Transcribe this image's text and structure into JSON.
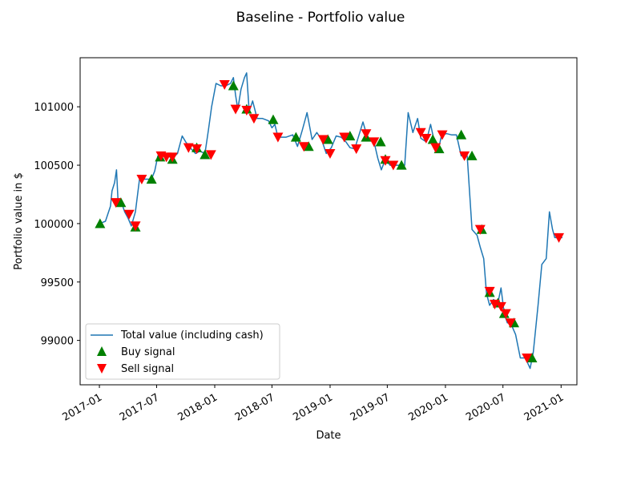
{
  "chart_data": {
    "type": "line",
    "title": "Baseline - Portfolio value",
    "xlabel": "Date",
    "ylabel": "Portfolio value in $",
    "xlim": [
      "2016-11-01",
      "2021-02-20"
    ],
    "ylim": [
      98620,
      101420
    ],
    "x_ticks": [
      "2017-01",
      "2017-07",
      "2018-01",
      "2018-07",
      "2019-01",
      "2019-07",
      "2020-01",
      "2020-07",
      "2021-01"
    ],
    "y_ticks": [
      99000,
      99500,
      100000,
      100500,
      101000
    ],
    "grid": false,
    "legend_position": "lower-left",
    "series": [
      {
        "name": "Total value (including cash)",
        "color": "#1f77b4",
        "points": [
          [
            "2017-01-01",
            100000
          ],
          [
            "2017-01-20",
            100020
          ],
          [
            "2017-02-05",
            100150
          ],
          [
            "2017-02-10",
            100280
          ],
          [
            "2017-02-18",
            100350
          ],
          [
            "2017-02-24",
            100460
          ],
          [
            "2017-03-01",
            100200
          ],
          [
            "2017-03-12",
            100180
          ],
          [
            "2017-03-22",
            100100
          ],
          [
            "2017-04-01",
            100050
          ],
          [
            "2017-04-12",
            99980
          ],
          [
            "2017-04-25",
            100100
          ],
          [
            "2017-05-08",
            100380
          ],
          [
            "2017-05-25",
            100380
          ],
          [
            "2017-06-15",
            100380
          ],
          [
            "2017-06-25",
            100450
          ],
          [
            "2017-07-05",
            100580
          ],
          [
            "2017-07-20",
            100600
          ],
          [
            "2017-08-05",
            100580
          ],
          [
            "2017-08-20",
            100560
          ],
          [
            "2017-09-05",
            100600
          ],
          [
            "2017-09-20",
            100750
          ],
          [
            "2017-10-01",
            100700
          ],
          [
            "2017-10-15",
            100650
          ],
          [
            "2017-11-01",
            100600
          ],
          [
            "2017-11-15",
            100620
          ],
          [
            "2017-12-01",
            100600
          ],
          [
            "2017-12-12",
            100800
          ],
          [
            "2017-12-22",
            101000
          ],
          [
            "2018-01-05",
            101200
          ],
          [
            "2018-01-20",
            101180
          ],
          [
            "2018-02-05",
            101180
          ],
          [
            "2018-02-20",
            101200
          ],
          [
            "2018-03-01",
            101250
          ],
          [
            "2018-03-08",
            101100
          ],
          [
            "2018-03-15",
            100980
          ],
          [
            "2018-03-25",
            101150
          ],
          [
            "2018-04-05",
            101250
          ],
          [
            "2018-04-12",
            101290
          ],
          [
            "2018-04-20",
            100960
          ],
          [
            "2018-05-01",
            101050
          ],
          [
            "2018-05-15",
            100900
          ],
          [
            "2018-06-01",
            100900
          ],
          [
            "2018-06-20",
            100880
          ],
          [
            "2018-07-01",
            100820
          ],
          [
            "2018-07-10",
            100850
          ],
          [
            "2018-07-20",
            100740
          ],
          [
            "2018-08-15",
            100740
          ],
          [
            "2018-09-05",
            100760
          ],
          [
            "2018-09-20",
            100660
          ],
          [
            "2018-10-05",
            100800
          ],
          [
            "2018-10-20",
            100950
          ],
          [
            "2018-11-05",
            100720
          ],
          [
            "2018-11-20",
            100780
          ],
          [
            "2018-12-05",
            100720
          ],
          [
            "2018-12-20",
            100600
          ],
          [
            "2019-01-05",
            100650
          ],
          [
            "2019-01-20",
            100750
          ],
          [
            "2019-02-05",
            100740
          ],
          [
            "2019-02-20",
            100700
          ],
          [
            "2019-03-05",
            100650
          ],
          [
            "2019-03-20",
            100640
          ],
          [
            "2019-04-05",
            100780
          ],
          [
            "2019-04-15",
            100870
          ],
          [
            "2019-05-01",
            100720
          ],
          [
            "2019-05-20",
            100700
          ],
          [
            "2019-06-01",
            100560
          ],
          [
            "2019-06-12",
            100460
          ],
          [
            "2019-06-25",
            100550
          ],
          [
            "2019-07-10",
            100500
          ],
          [
            "2019-08-10",
            100500
          ],
          [
            "2019-08-25",
            100500
          ],
          [
            "2019-09-05",
            100950
          ],
          [
            "2019-09-20",
            100780
          ],
          [
            "2019-10-05",
            100900
          ],
          [
            "2019-10-15",
            100730
          ],
          [
            "2019-11-01",
            100700
          ],
          [
            "2019-11-15",
            100850
          ],
          [
            "2019-12-01",
            100650
          ],
          [
            "2019-12-10",
            100640
          ],
          [
            "2019-12-20",
            100760
          ],
          [
            "2020-01-05",
            100770
          ],
          [
            "2020-01-20",
            100760
          ],
          [
            "2020-02-05",
            100760
          ],
          [
            "2020-02-20",
            100580
          ],
          [
            "2020-03-10",
            100580
          ],
          [
            "2020-03-25",
            99950
          ],
          [
            "2020-04-10",
            99900
          ],
          [
            "2020-04-20",
            99800
          ],
          [
            "2020-05-01",
            99700
          ],
          [
            "2020-05-10",
            99400
          ],
          [
            "2020-05-20",
            99300
          ],
          [
            "2020-06-01",
            99350
          ],
          [
            "2020-06-15",
            99320
          ],
          [
            "2020-06-25",
            99450
          ],
          [
            "2020-07-05",
            99230
          ],
          [
            "2020-07-15",
            99150
          ],
          [
            "2020-07-25",
            99150
          ],
          [
            "2020-08-10",
            99050
          ],
          [
            "2020-08-25",
            98850
          ],
          [
            "2020-09-10",
            98850
          ],
          [
            "2020-09-25",
            98760
          ],
          [
            "2020-10-05",
            98900
          ],
          [
            "2020-10-20",
            99300
          ],
          [
            "2020-11-01",
            99650
          ],
          [
            "2020-11-15",
            99700
          ],
          [
            "2020-11-25",
            100100
          ],
          [
            "2020-12-05",
            99950
          ],
          [
            "2020-12-12",
            99880
          ],
          [
            "2021-01-05",
            99880
          ]
        ]
      },
      {
        "name": "Buy signal",
        "color": "#008000",
        "marker": "triangle-up",
        "points": [
          [
            "2017-01-03",
            100000
          ],
          [
            "2017-03-10",
            100180
          ],
          [
            "2017-04-25",
            99970
          ],
          [
            "2017-06-15",
            100380
          ],
          [
            "2017-07-12",
            100570
          ],
          [
            "2017-08-20",
            100550
          ],
          [
            "2017-11-05",
            100650
          ],
          [
            "2017-12-01",
            100590
          ],
          [
            "2018-03-01",
            101180
          ],
          [
            "2018-04-12",
            100980
          ],
          [
            "2018-07-05",
            100890
          ],
          [
            "2018-09-15",
            100740
          ],
          [
            "2018-10-25",
            100660
          ],
          [
            "2018-12-25",
            100720
          ],
          [
            "2019-03-05",
            100750
          ],
          [
            "2019-04-25",
            100740
          ],
          [
            "2019-06-10",
            100700
          ],
          [
            "2019-06-25",
            100550
          ],
          [
            "2019-08-15",
            100500
          ],
          [
            "2019-11-22",
            100720
          ],
          [
            "2019-12-12",
            100640
          ],
          [
            "2020-02-20",
            100760
          ],
          [
            "2020-03-25",
            100580
          ],
          [
            "2020-04-25",
            99950
          ],
          [
            "2020-05-20",
            99410
          ],
          [
            "2020-06-15",
            99320
          ],
          [
            "2020-07-05",
            99230
          ],
          [
            "2020-08-05",
            99150
          ],
          [
            "2020-10-01",
            98850
          ]
        ]
      },
      {
        "name": "Sell signal",
        "color": "#ff0000",
        "marker": "triangle-down",
        "points": [
          [
            "2017-02-22",
            100180
          ],
          [
            "2017-04-05",
            100080
          ],
          [
            "2017-04-25",
            99980
          ],
          [
            "2017-05-15",
            100380
          ],
          [
            "2017-07-15",
            100580
          ],
          [
            "2017-08-01",
            100570
          ],
          [
            "2017-08-20",
            100570
          ],
          [
            "2017-10-10",
            100650
          ],
          [
            "2017-11-05",
            100640
          ],
          [
            "2017-12-20",
            100590
          ],
          [
            "2018-02-01",
            101190
          ],
          [
            "2018-03-08",
            100980
          ],
          [
            "2018-04-12",
            100970
          ],
          [
            "2018-05-05",
            100900
          ],
          [
            "2018-07-20",
            100740
          ],
          [
            "2018-10-10",
            100660
          ],
          [
            "2018-12-10",
            100720
          ],
          [
            "2019-01-01",
            100600
          ],
          [
            "2019-02-15",
            100740
          ],
          [
            "2019-03-25",
            100640
          ],
          [
            "2019-04-25",
            100770
          ],
          [
            "2019-05-20",
            100700
          ],
          [
            "2019-06-25",
            100540
          ],
          [
            "2019-07-20",
            100500
          ],
          [
            "2019-10-15",
            100780
          ],
          [
            "2019-11-01",
            100730
          ],
          [
            "2019-12-01",
            100650
          ],
          [
            "2019-12-22",
            100760
          ],
          [
            "2020-03-01",
            100580
          ],
          [
            "2020-04-20",
            99950
          ],
          [
            "2020-05-20",
            99420
          ],
          [
            "2020-06-05",
            99310
          ],
          [
            "2020-06-25",
            99290
          ],
          [
            "2020-07-10",
            99230
          ],
          [
            "2020-07-25",
            99150
          ],
          [
            "2020-09-15",
            98850
          ],
          [
            "2020-12-25",
            99880
          ]
        ]
      }
    ]
  }
}
